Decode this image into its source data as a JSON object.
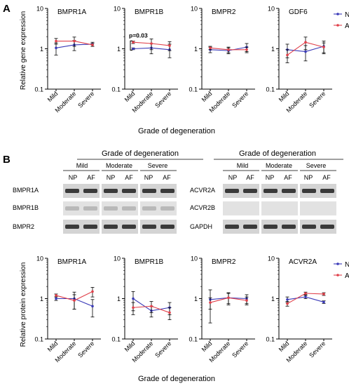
{
  "panels": {
    "A": {
      "letter": "A",
      "ylabel": "Relative gene expression",
      "xlabel": "Grade of degeneration"
    },
    "B": {
      "letter": "B",
      "ylabel": "Relative protein expression",
      "xlabel": "Grade of degeneration"
    }
  },
  "legend": {
    "series": [
      {
        "name": "NP",
        "color": "#3a3ab8"
      },
      {
        "name": "AF",
        "color": "#e0404a"
      }
    ]
  },
  "blots": {
    "left": {
      "header": "Grade of degeneration",
      "groups": [
        "Mild",
        "Moderate",
        "Severe"
      ],
      "lanes": [
        "NP",
        "AF",
        "NP",
        "AF",
        "NP",
        "AF"
      ],
      "rows": [
        "BMPR1A",
        "BMPR1B",
        "BMPR2"
      ]
    },
    "right": {
      "header": "Grade of degeneration",
      "groups": [
        "Mild",
        "Moderate",
        "Severe"
      ],
      "lanes": [
        "NP",
        "AF",
        "NP",
        "AF",
        "NP",
        "AF"
      ],
      "rows": [
        "ACVR2A",
        "ACVR2B",
        "GAPDH"
      ]
    }
  },
  "chart_data": [
    {
      "type": "line",
      "panel": "A",
      "title": "BMPR1A",
      "x": [
        "Mild",
        "Moderate",
        "Severe"
      ],
      "yscale": "log",
      "ylim": [
        0.1,
        10
      ],
      "yticks": [
        "10",
        "1",
        "0.1"
      ],
      "legend": false,
      "series": [
        {
          "name": "NP",
          "values": [
            1.05,
            1.25,
            1.3
          ],
          "err": [
            0.35,
            0.35,
            0.15
          ]
        },
        {
          "name": "AF",
          "values": [
            1.55,
            1.55,
            1.25
          ],
          "err": [
            0.25,
            0.4,
            0.1
          ]
        }
      ]
    },
    {
      "type": "line",
      "panel": "A",
      "title": "BMPR1B",
      "x": [
        "Mild",
        "Moderate",
        "Severe"
      ],
      "yscale": "log",
      "ylim": [
        0.1,
        10
      ],
      "yticks": [
        "10",
        "1",
        "0.1"
      ],
      "legend": false,
      "annotation": "p=0.03",
      "series": [
        {
          "name": "NP",
          "values": [
            1.0,
            1.05,
            0.95
          ],
          "err": [
            0.05,
            0.3,
            0.35
          ]
        },
        {
          "name": "AF",
          "values": [
            1.45,
            1.35,
            1.2
          ],
          "err": [
            0.1,
            0.4,
            0.3
          ]
        }
      ]
    },
    {
      "type": "line",
      "panel": "A",
      "title": "BMPR2",
      "x": [
        "Mild",
        "Moderate",
        "Severe"
      ],
      "yscale": "log",
      "ylim": [
        0.1,
        10
      ],
      "yticks": [
        "10",
        "1",
        "0.1"
      ],
      "legend": false,
      "series": [
        {
          "name": "NP",
          "values": [
            0.95,
            0.9,
            1.1
          ],
          "err": [
            0.15,
            0.15,
            0.25
          ]
        },
        {
          "name": "AF",
          "values": [
            1.05,
            0.95,
            0.95
          ],
          "err": [
            0.1,
            0.15,
            0.15
          ]
        }
      ]
    },
    {
      "type": "line",
      "panel": "A",
      "title": "GDF6",
      "x": [
        "Mild",
        "Moderate",
        "Severe"
      ],
      "yscale": "log",
      "ylim": [
        0.1,
        10
      ],
      "yticks": [
        "10",
        "1",
        "0.1"
      ],
      "legend": true,
      "series": [
        {
          "name": "NP",
          "values": [
            0.95,
            0.85,
            1.15
          ],
          "err": [
            0.35,
            0.35,
            0.4
          ]
        },
        {
          "name": "AF",
          "values": [
            0.7,
            1.45,
            1.1
          ],
          "err": [
            0.25,
            0.5,
            0.3
          ]
        }
      ]
    },
    {
      "type": "line",
      "panel": "B",
      "title": "BMPR1A",
      "x": [
        "Mild",
        "Moderate",
        "Severe"
      ],
      "yscale": "log",
      "ylim": [
        0.1,
        10
      ],
      "yticks": [
        "10",
        "1",
        "0.1"
      ],
      "legend": false,
      "series": [
        {
          "name": "NP",
          "values": [
            1.0,
            1.0,
            0.65
          ],
          "err": [
            0.1,
            0.45,
            0.3
          ]
        },
        {
          "name": "AF",
          "values": [
            1.2,
            0.9,
            1.5
          ],
          "err": [
            0.1,
            0.35,
            0.4
          ]
        }
      ]
    },
    {
      "type": "line",
      "panel": "B",
      "title": "BMPR1B",
      "x": [
        "Mild",
        "Moderate",
        "Severe"
      ],
      "yscale": "log",
      "ylim": [
        0.1,
        10
      ],
      "yticks": [
        "10",
        "1",
        "0.1"
      ],
      "legend": false,
      "series": [
        {
          "name": "NP",
          "values": [
            1.0,
            0.5,
            0.6
          ],
          "err": [
            0.5,
            0.15,
            0.2
          ]
        },
        {
          "name": "AF",
          "values": [
            0.6,
            0.65,
            0.45
          ],
          "err": [
            0.2,
            0.2,
            0.15
          ]
        }
      ]
    },
    {
      "type": "line",
      "panel": "B",
      "title": "BMPR2",
      "x": [
        "Mild",
        "Moderate",
        "Severe"
      ],
      "yscale": "log",
      "ylim": [
        0.1,
        10
      ],
      "yticks": [
        "10",
        "1",
        "0.1"
      ],
      "legend": false,
      "series": [
        {
          "name": "NP",
          "values": [
            0.95,
            1.05,
            1.0
          ],
          "err": [
            0.7,
            0.35,
            0.25
          ]
        },
        {
          "name": "AF",
          "values": [
            0.8,
            1.05,
            0.9
          ],
          "err": [
            0.25,
            0.3,
            0.2
          ]
        }
      ]
    },
    {
      "type": "line",
      "panel": "B",
      "title": "ACVR2A",
      "x": [
        "Mild",
        "Moderate",
        "Severe"
      ],
      "yscale": "log",
      "ylim": [
        0.1,
        10
      ],
      "yticks": [
        "10",
        "1",
        "0.1"
      ],
      "legend": true,
      "series": [
        {
          "name": "NP",
          "values": [
            0.95,
            1.1,
            0.82
          ],
          "err": [
            0.15,
            0.1,
            0.06
          ]
        },
        {
          "name": "AF",
          "values": [
            0.75,
            1.35,
            1.3
          ],
          "err": [
            0.1,
            0.1,
            0.1
          ]
        }
      ]
    }
  ]
}
